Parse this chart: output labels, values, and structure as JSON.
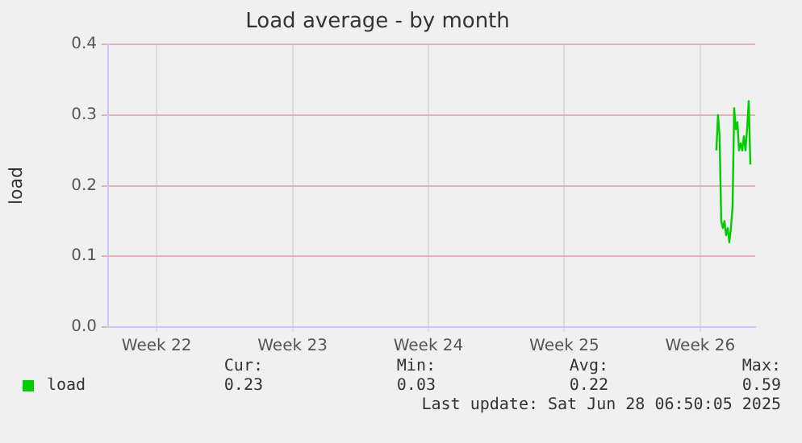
{
  "chart_data": {
    "type": "line",
    "title": "Load average - by month",
    "ylabel": "load",
    "categories": [
      null,
      null,
      null,
      null,
      null,
      null,
      null,
      null,
      null,
      null,
      null,
      null,
      null,
      null,
      null,
      null,
      null,
      null,
      null,
      null,
      null,
      null,
      null,
      null,
      null,
      null,
      null,
      null,
      null,
      null,
      "Week 22",
      null,
      null,
      null,
      null,
      null,
      null,
      null,
      null,
      null,
      null,
      null,
      null,
      null,
      null,
      null,
      null,
      null,
      null,
      null,
      null,
      null,
      null,
      null,
      null,
      null,
      null,
      null,
      null,
      null,
      null,
      null,
      null,
      null,
      null,
      null,
      null,
      null,
      null,
      null,
      null,
      null,
      null,
      null,
      null,
      null,
      null,
      null,
      null,
      null,
      null,
      null,
      null,
      null,
      null,
      null,
      null,
      null,
      null,
      null,
      null,
      null,
      null,
      null,
      null,
      null,
      null,
      null,
      null,
      null,
      null,
      null,
      null,
      null,
      null,
      null,
      null,
      null,
      null,
      null,
      null,
      null,
      null,
      null,
      "Week 23",
      null,
      null,
      null,
      null,
      null,
      null,
      null,
      null,
      null,
      null,
      null,
      null,
      null,
      null,
      null,
      null,
      null,
      null,
      null,
      null,
      null,
      null,
      null,
      null,
      null,
      null,
      null,
      null,
      null,
      null,
      null,
      null,
      null,
      null,
      null,
      null,
      null,
      null,
      null,
      null,
      null,
      null,
      null,
      null,
      null,
      null,
      null,
      null,
      null,
      null,
      null,
      null,
      null,
      null,
      null,
      null,
      null,
      null,
      null,
      null,
      null,
      null,
      null,
      null,
      null,
      null,
      null,
      null,
      null,
      null,
      null,
      null,
      null,
      null,
      null,
      null,
      null,
      null,
      null,
      null,
      null,
      null,
      null,
      "Week 24",
      null,
      null,
      null,
      null,
      null,
      null,
      null,
      null,
      null,
      null,
      null,
      null,
      null,
      null,
      null,
      null,
      null,
      null,
      null,
      null,
      null,
      null,
      null,
      null,
      null,
      null,
      null,
      null,
      null,
      null,
      null,
      null,
      null,
      null,
      null,
      null,
      null,
      null,
      null,
      null,
      null,
      null,
      null,
      null,
      null,
      null,
      null,
      null,
      null,
      null,
      null,
      null,
      null,
      null,
      null,
      null,
      null,
      null,
      null,
      null,
      null,
      null,
      null,
      null,
      null,
      null,
      null,
      null,
      null,
      null,
      null,
      null,
      null,
      null,
      null,
      null,
      null,
      null,
      null,
      null,
      null,
      null,
      null,
      "Week 25",
      null,
      null,
      null,
      null,
      null,
      null,
      null,
      null,
      null,
      null,
      null,
      null,
      null,
      null,
      null,
      null,
      null,
      null,
      null,
      null,
      null,
      null,
      null,
      null,
      null,
      null,
      null,
      null,
      null,
      null,
      null,
      null,
      null,
      null,
      null,
      null,
      null,
      null,
      null,
      null,
      null,
      null,
      null,
      null,
      null,
      null,
      null,
      null,
      null,
      null,
      null,
      null,
      null,
      null,
      null,
      null,
      null,
      null,
      null,
      null,
      null,
      null,
      null,
      null,
      null,
      null,
      null,
      null,
      null,
      null,
      null,
      null,
      null,
      null,
      null,
      null,
      null,
      null,
      null,
      null,
      null,
      null,
      null,
      "Week 26",
      null,
      null,
      null,
      null,
      null,
      null,
      null,
      null,
      null,
      null,
      null,
      null,
      null,
      null,
      null,
      null,
      null,
      null,
      null,
      null,
      null,
      null,
      null,
      null,
      null,
      null,
      null,
      null,
      null,
      null,
      null,
      null,
      null,
      null
    ],
    "series": [
      {
        "name": "load",
        "color": "#00cc00",
        "values": [
          null,
          null,
          null,
          null,
          null,
          null,
          null,
          null,
          null,
          null,
          null,
          null,
          null,
          null,
          null,
          null,
          null,
          null,
          null,
          null,
          null,
          null,
          null,
          null,
          null,
          null,
          null,
          null,
          null,
          null,
          null,
          null,
          null,
          null,
          null,
          null,
          null,
          null,
          null,
          null,
          null,
          null,
          null,
          null,
          null,
          null,
          null,
          null,
          null,
          null,
          null,
          null,
          null,
          null,
          null,
          null,
          null,
          null,
          null,
          null,
          null,
          null,
          null,
          null,
          null,
          null,
          null,
          null,
          null,
          null,
          null,
          null,
          null,
          null,
          null,
          null,
          null,
          null,
          null,
          null,
          null,
          null,
          null,
          null,
          null,
          null,
          null,
          null,
          null,
          null,
          null,
          null,
          null,
          null,
          null,
          null,
          null,
          null,
          null,
          null,
          null,
          null,
          null,
          null,
          null,
          null,
          null,
          null,
          null,
          null,
          null,
          null,
          null,
          null,
          null,
          null,
          null,
          null,
          null,
          null,
          null,
          null,
          null,
          null,
          null,
          null,
          null,
          null,
          null,
          null,
          null,
          null,
          null,
          null,
          null,
          null,
          null,
          null,
          null,
          null,
          null,
          null,
          null,
          null,
          null,
          null,
          null,
          null,
          null,
          null,
          null,
          null,
          null,
          null,
          null,
          null,
          null,
          null,
          null,
          null,
          null,
          null,
          null,
          null,
          null,
          null,
          null,
          null,
          null,
          null,
          null,
          null,
          null,
          null,
          null,
          null,
          null,
          null,
          null,
          null,
          null,
          null,
          null,
          null,
          null,
          null,
          null,
          null,
          null,
          null,
          null,
          null,
          null,
          null,
          null,
          null,
          null,
          null,
          null,
          null,
          null,
          null,
          null,
          null,
          null,
          null,
          null,
          null,
          null,
          null,
          null,
          null,
          null,
          null,
          null,
          null,
          null,
          null,
          null,
          null,
          null,
          null,
          null,
          null,
          null,
          null,
          null,
          null,
          null,
          null,
          null,
          null,
          null,
          null,
          null,
          null,
          null,
          null,
          null,
          null,
          null,
          null,
          null,
          null,
          null,
          null,
          null,
          null,
          null,
          null,
          null,
          null,
          null,
          null,
          null,
          null,
          null,
          null,
          null,
          null,
          null,
          null,
          null,
          null,
          null,
          null,
          null,
          null,
          null,
          null,
          null,
          null,
          null,
          null,
          null,
          null,
          null,
          null,
          null,
          null,
          null,
          null,
          null,
          null,
          null,
          null,
          null,
          null,
          null,
          null,
          null,
          null,
          null,
          null,
          null,
          null,
          null,
          null,
          null,
          null,
          null,
          null,
          null,
          null,
          null,
          null,
          null,
          null,
          null,
          null,
          null,
          null,
          null,
          null,
          null,
          null,
          null,
          null,
          null,
          null,
          null,
          null,
          null,
          null,
          null,
          null,
          null,
          null,
          null,
          null,
          null,
          null,
          null,
          null,
          null,
          null,
          null,
          null,
          null,
          null,
          null,
          null,
          null,
          null,
          null,
          null,
          null,
          null,
          null,
          null,
          null,
          null,
          null,
          null,
          null,
          null,
          null,
          null,
          null,
          null,
          null,
          null,
          null,
          null,
          null,
          null,
          null,
          null,
          null,
          null,
          null,
          null,
          null,
          null,
          null,
          null,
          0.25,
          0.3,
          0.27,
          0.15,
          0.14,
          0.15,
          0.13,
          0.14,
          0.12,
          0.14,
          0.17,
          0.31,
          0.28,
          0.29,
          0.25,
          0.26,
          0.25,
          0.27,
          0.25,
          0.28,
          0.32,
          0.23,
          null,
          null,
          null
        ]
      }
    ],
    "ylim": [
      0,
      0.4
    ],
    "yticks": [
      {
        "value": 0,
        "label": "0.0"
      },
      {
        "value": 0.1,
        "label": "0.1"
      },
      {
        "value": 0.2,
        "label": "0.2"
      },
      {
        "value": 0.3,
        "label": "0.3"
      },
      {
        "value": 0.4,
        "label": "0.4"
      }
    ],
    "grid": true,
    "legend": "bottom left",
    "marker": "none",
    "line_style": "solid",
    "annotations": [
      "Cur:",
      "Min:",
      "Avg:",
      "Max:",
      "0.23",
      "0.03",
      "0.22",
      "0.59",
      "Last update: Sat Jun 28 06:50:05 2025"
    ]
  }
}
